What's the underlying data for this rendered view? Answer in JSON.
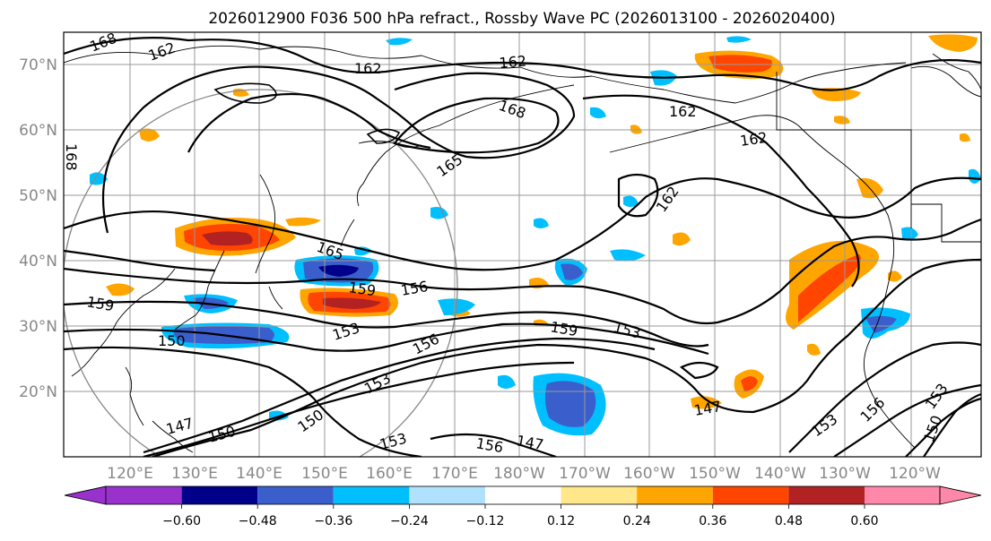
{
  "title": "2026012900 F036 500 hPa refract., Rossby Wave PC (2026013100 - 2026020400)",
  "lat_labels": [
    "70°N",
    "60°N",
    "50°N",
    "40°N",
    "30°N",
    "20°N"
  ],
  "lon_labels": [
    "120°E",
    "130°E",
    "140°E",
    "150°E",
    "160°E",
    "170°E",
    "180°W",
    "170°W",
    "160°W",
    "150°W",
    "140°W",
    "130°W",
    "120°W"
  ],
  "contour_labels": {
    "c1": "168",
    "c2": "162",
    "c3": "168",
    "c4": "162",
    "c5": "162",
    "c6": "168",
    "c7": "162",
    "c8": "162",
    "c9": "165",
    "c10": "162",
    "c11": "165",
    "c12": "159",
    "c13": "156",
    "c14": "159",
    "c15": "150",
    "c16": "153",
    "c17": "156",
    "c18": "153",
    "c19": "159",
    "c20": "153",
    "c21": "150",
    "c22": "147",
    "c23": "150",
    "c24": "147",
    "c25": "153",
    "c26": "156",
    "c27": "147",
    "c28": "153",
    "c29": "156",
    "c30": "153",
    "c31": "150"
  },
  "colorbar": {
    "ticks": [
      "−0.60",
      "−0.48",
      "−0.36",
      "−0.24",
      "−0.12",
      "0.12",
      "0.24",
      "0.36",
      "0.48",
      "0.60"
    ],
    "colors": [
      "#9932cc",
      "#00008b",
      "#3a5fcd",
      "#00bfff",
      "#b0e2ff",
      "#ffffff",
      "#ffe78a",
      "#ffa500",
      "#ff4500",
      "#b22222",
      "#ff88aa"
    ]
  }
}
